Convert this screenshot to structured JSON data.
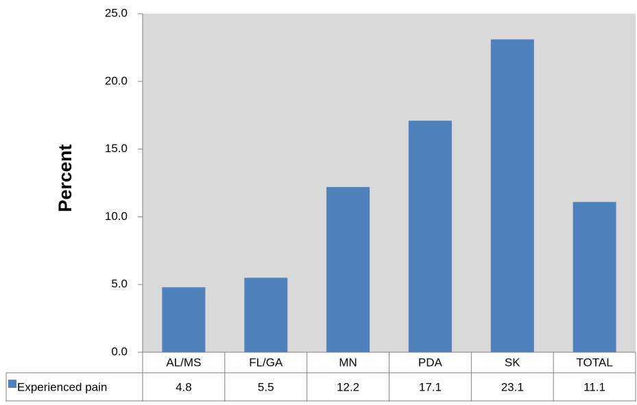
{
  "chart_data": {
    "type": "bar",
    "ylabel": "Percent",
    "ylim": [
      0,
      25
    ],
    "yticks": [
      "0.0",
      "5.0",
      "10.0",
      "15.0",
      "20.0",
      "25.0"
    ],
    "categories": [
      "AL/MS",
      "FL/GA",
      "MN",
      "PDA",
      "SK",
      "TOTAL"
    ],
    "series": [
      {
        "name": "Experienced pain",
        "values": [
          4.8,
          5.5,
          12.2,
          17.1,
          23.1,
          11.1
        ],
        "labels": [
          "4.8",
          "5.5",
          "12.2",
          "17.1",
          "23.1",
          "11.1"
        ],
        "color": "#4f81bd"
      }
    ],
    "plot_background": "#d9d9d9",
    "grid": false,
    "legend": "data-table-left"
  }
}
